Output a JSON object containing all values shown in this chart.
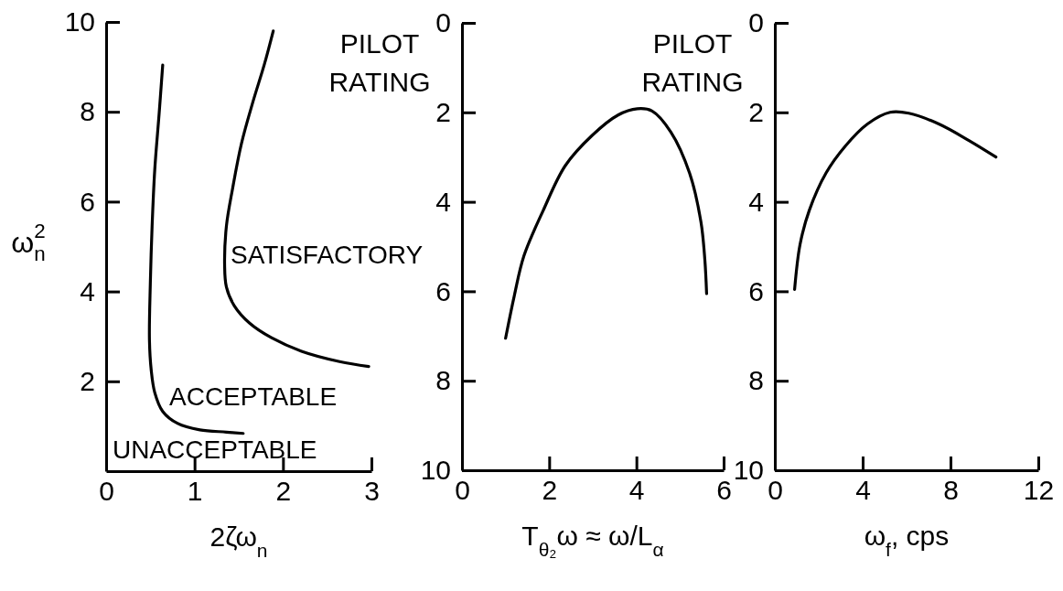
{
  "chart_data": [
    {
      "type": "line",
      "xlabel": "2ζω$_{n}$",
      "ylabel": "ω$_{n}$$^{2}$",
      "xlim": [
        0,
        3
      ],
      "ylim": [
        0,
        10
      ],
      "xticks": [
        0,
        1,
        2,
        3
      ],
      "yticks": [
        2,
        4,
        6,
        8,
        10
      ],
      "series": [
        {
          "color": "#000000",
          "x": [
            0.64,
            0.6,
            0.55,
            0.52,
            0.5,
            0.49,
            0.51,
            0.55,
            0.64,
            0.81,
            1.06,
            1.36,
            1.55
          ],
          "values": [
            9.04,
            7.97,
            6.71,
            5.45,
            4.18,
            2.92,
            2.25,
            1.75,
            1.33,
            1.06,
            0.92,
            0.87,
            0.84
          ]
        },
        {
          "color": "#000000",
          "x": [
            1.89,
            1.79,
            1.66,
            1.53,
            1.43,
            1.36,
            1.34,
            1.36,
            1.45,
            1.62,
            1.87,
            2.21,
            2.64,
            2.97
          ],
          "values": [
            9.8,
            9.06,
            8.22,
            7.29,
            6.29,
            5.45,
            4.6,
            4.1,
            3.68,
            3.3,
            2.97,
            2.67,
            2.44,
            2.33
          ]
        }
      ],
      "annotations": [
        "SATISFACTORY",
        "ACCEPTABLE",
        "UNACCEPTABLE"
      ]
    },
    {
      "type": "line",
      "xlabel": "T$_{θ₂}$ω ≈ ω/L$_{α}$",
      "ylabel": "PILOT RATING",
      "xlim": [
        0,
        6
      ],
      "ylim": [
        10,
        0
      ],
      "xticks": [
        0,
        2,
        4,
        6
      ],
      "yticks": [
        0,
        2,
        4,
        6,
        8,
        10
      ],
      "series": [
        {
          "color": "#000000",
          "x": [
            1.0,
            1.2,
            1.42,
            1.86,
            2.37,
            2.98,
            3.58,
            4.02,
            4.36,
            4.79,
            5.22,
            5.48,
            5.57,
            5.61
          ],
          "values": [
            7.05,
            6.1,
            5.21,
            4.2,
            3.19,
            2.52,
            2.06,
            1.92,
            1.97,
            2.44,
            3.36,
            4.45,
            5.3,
            6.05
          ]
        }
      ]
    },
    {
      "type": "line",
      "xlabel": "ω$_{f}$, cps",
      "ylabel": "PILOT RATING",
      "xlim": [
        0,
        12
      ],
      "ylim": [
        10,
        0
      ],
      "xticks": [
        0,
        4,
        8,
        12
      ],
      "yticks": [
        0,
        2,
        4,
        6,
        8,
        10
      ],
      "series": [
        {
          "color": "#000000",
          "x": [
            0.9,
            1.15,
            1.57,
            2.34,
            3.2,
            4.22,
            5.25,
            6.1,
            7.47,
            8.84,
            10.07
          ],
          "values": [
            5.96,
            4.95,
            4.19,
            3.35,
            2.76,
            2.26,
            2.0,
            2.02,
            2.26,
            2.63,
            3.0
          ]
        }
      ]
    }
  ]
}
